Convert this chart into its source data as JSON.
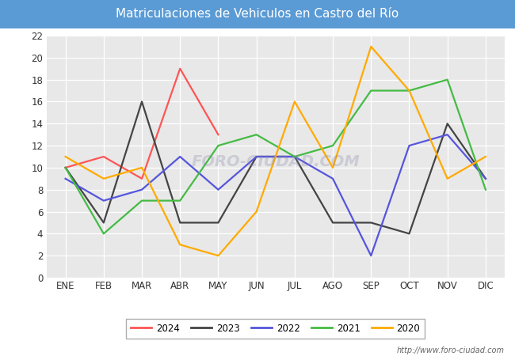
{
  "title": "Matriculaciones de Vehiculos en Castro del Río",
  "months": [
    "ENE",
    "FEB",
    "MAR",
    "ABR",
    "MAY",
    "JUN",
    "JUL",
    "AGO",
    "SEP",
    "OCT",
    "NOV",
    "DIC"
  ],
  "series": {
    "2024": {
      "values": [
        10,
        11,
        9,
        19,
        13,
        null,
        null,
        null,
        null,
        null,
        null,
        null
      ],
      "color": "#ff5555",
      "label": "2024"
    },
    "2023": {
      "values": [
        10,
        5,
        16,
        5,
        5,
        11,
        11,
        5,
        5,
        4,
        14,
        9
      ],
      "color": "#444444",
      "label": "2023"
    },
    "2022": {
      "values": [
        9,
        7,
        8,
        11,
        8,
        11,
        11,
        9,
        2,
        12,
        13,
        9
      ],
      "color": "#5555dd",
      "label": "2022"
    },
    "2021": {
      "values": [
        10,
        4,
        7,
        7,
        12,
        13,
        11,
        12,
        17,
        17,
        18,
        8
      ],
      "color": "#44bb44",
      "label": "2021"
    },
    "2020": {
      "values": [
        11,
        9,
        10,
        3,
        2,
        6,
        16,
        10,
        21,
        17,
        9,
        11
      ],
      "color": "#ffaa00",
      "label": "2020"
    }
  },
  "ylim": [
    0,
    22
  ],
  "yticks": [
    0,
    2,
    4,
    6,
    8,
    10,
    12,
    14,
    16,
    18,
    20,
    22
  ],
  "title_fontsize": 11,
  "title_bg_color": "#5b9bd5",
  "title_text_color": "white",
  "plot_bg_color": "#e8e8e8",
  "grid_color": "white",
  "url": "http://www.foro-ciudad.com",
  "legend_order": [
    "2024",
    "2023",
    "2022",
    "2021",
    "2020"
  ]
}
